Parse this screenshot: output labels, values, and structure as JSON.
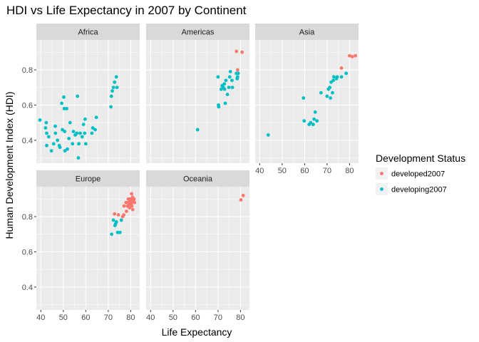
{
  "chart_data": {
    "type": "scatter",
    "title": "HDI vs Life Expectancy in 2007 by Continent",
    "xlabel": "Life Expectancy",
    "ylabel": "Human Development Index (HDI)",
    "xlim": [
      38,
      84
    ],
    "ylim": [
      0.27,
      0.97
    ],
    "xticks": [
      40,
      50,
      60,
      70,
      80
    ],
    "yticks": [
      0.4,
      0.6,
      0.8
    ],
    "legend": {
      "title": "Development Status",
      "position": "right",
      "entries": [
        "developed2007",
        "developing2007"
      ]
    },
    "colors": {
      "developed2007": "#f8766d",
      "developing2007": "#00bfc4",
      "panel": "#ebebeb",
      "strip": "#d9d9d9",
      "grid": "#ffffff"
    },
    "panels": [
      {
        "name": "Africa",
        "series": [
          {
            "name": "developing2007",
            "points": [
              [
                39.6,
                0.515
              ],
              [
                42.6,
                0.37
              ],
              [
                42.4,
                0.5
              ],
              [
                42.1,
                0.47
              ],
              [
                42.6,
                0.44
              ],
              [
                43.5,
                0.42
              ],
              [
                44.7,
                0.34
              ],
              [
                45.7,
                0.38
              ],
              [
                46.5,
                0.44
              ],
              [
                46.4,
                0.48
              ],
              [
                47.4,
                0.4
              ],
              [
                48.2,
                0.37
              ],
              [
                48.5,
                0.36
              ],
              [
                49.3,
                0.61
              ],
              [
                49.6,
                0.46
              ],
              [
                50.2,
                0.645
              ],
              [
                50.4,
                0.58
              ],
              [
                50.6,
                0.45
              ],
              [
                50.7,
                0.34
              ],
              [
                51.5,
                0.58
              ],
              [
                51.8,
                0.35
              ],
              [
                52.5,
                0.41
              ],
              [
                53.0,
                0.5
              ],
              [
                54.1,
                0.38
              ],
              [
                54.5,
                0.45
              ],
              [
                55.3,
                0.43
              ],
              [
                56.0,
                0.44
              ],
              [
                56.3,
                0.65
              ],
              [
                56.7,
                0.3
              ],
              [
                56.9,
                0.38
              ],
              [
                57.5,
                0.44
              ],
              [
                58.4,
                0.42
              ],
              [
                59.0,
                0.49
              ],
              [
                59.5,
                0.44
              ],
              [
                59.7,
                0.52
              ],
              [
                60.0,
                0.38
              ],
              [
                62.7,
                0.44
              ],
              [
                63.1,
                0.47
              ],
              [
                64.2,
                0.46
              ],
              [
                64.7,
                0.53
              ],
              [
                71.2,
                0.59
              ],
              [
                71.4,
                0.65
              ],
              [
                71.8,
                0.68
              ],
              [
                72.3,
                0.7
              ],
              [
                72.8,
                0.73
              ],
              [
                73.6,
                0.76
              ],
              [
                73.9,
                0.7
              ]
            ]
          }
        ]
      },
      {
        "name": "Americas",
        "series": [
          {
            "name": "developing2007",
            "points": [
              [
                60.9,
                0.46
              ],
              [
                70.0,
                0.76
              ],
              [
                70.2,
                0.6
              ],
              [
                70.3,
                0.59
              ],
              [
                71.4,
                0.69
              ],
              [
                71.8,
                0.71
              ],
              [
                72.4,
                0.7
              ],
              [
                72.8,
                0.72
              ],
              [
                72.9,
                0.69
              ],
              [
                73.2,
                0.61
              ],
              [
                73.5,
                0.74
              ],
              [
                74.2,
                0.66
              ],
              [
                74.8,
                0.7
              ],
              [
                75.2,
                0.76
              ],
              [
                75.5,
                0.79
              ],
              [
                76.2,
                0.74
              ],
              [
                76.4,
                0.7
              ],
              [
                78.2,
                0.78
              ],
              [
                78.5,
                0.75
              ],
              [
                78.7,
                0.76
              ],
              [
                79.0,
                0.78
              ]
            ]
          },
          {
            "name": "developed2007",
            "points": [
              [
                78.2,
                0.905
              ],
              [
                78.7,
                0.8
              ],
              [
                80.7,
                0.9
              ]
            ]
          }
        ]
      },
      {
        "name": "Asia",
        "series": [
          {
            "name": "developing2007",
            "points": [
              [
                43.8,
                0.43
              ],
              [
                59.5,
                0.64
              ],
              [
                59.8,
                0.51
              ],
              [
                62.0,
                0.49
              ],
              [
                62.7,
                0.5
              ],
              [
                63.8,
                0.49
              ],
              [
                64.2,
                0.52
              ],
              [
                64.7,
                0.56
              ],
              [
                65.5,
                0.51
              ],
              [
                67.3,
                0.67
              ],
              [
                70.0,
                0.65
              ],
              [
                70.6,
                0.69
              ],
              [
                71.2,
                0.7
              ],
              [
                71.5,
                0.64
              ],
              [
                71.8,
                0.73
              ],
              [
                72.4,
                0.67
              ],
              [
                72.8,
                0.74
              ],
              [
                73.0,
                0.76
              ],
              [
                74.2,
                0.75
              ],
              [
                74.5,
                0.76
              ],
              [
                76.4,
                0.76
              ],
              [
                78.5,
                0.78
              ]
            ]
          },
          {
            "name": "developed2007",
            "points": [
              [
                76.4,
                0.81
              ],
              [
                80.0,
                0.88
              ],
              [
                81.2,
                0.875
              ],
              [
                82.6,
                0.88
              ]
            ]
          }
        ]
      },
      {
        "name": "Europe",
        "series": [
          {
            "name": "developing2007",
            "points": [
              [
                71.5,
                0.7
              ],
              [
                72.3,
                0.78
              ],
              [
                73.0,
                0.75
              ],
              [
                73.3,
                0.76
              ],
              [
                73.6,
                0.77
              ],
              [
                74.2,
                0.71
              ],
              [
                75.2,
                0.71
              ],
              [
                75.8,
                0.78
              ]
            ]
          },
          {
            "name": "developed2007",
            "points": [
              [
                72.8,
                0.815
              ],
              [
                74.5,
                0.81
              ],
              [
                76.4,
                0.8
              ],
              [
                76.9,
                0.81
              ],
              [
                77.0,
                0.86
              ],
              [
                77.9,
                0.88
              ],
              [
                78.1,
                0.83
              ],
              [
                78.5,
                0.86
              ],
              [
                78.9,
                0.9
              ],
              [
                79.0,
                0.88
              ],
              [
                79.3,
                0.87
              ],
              [
                79.4,
                0.9
              ],
              [
                79.5,
                0.85
              ],
              [
                79.8,
                0.89
              ],
              [
                80.0,
                0.87
              ],
              [
                80.2,
                0.9
              ],
              [
                80.4,
                0.93
              ],
              [
                80.5,
                0.86
              ],
              [
                80.6,
                0.88
              ],
              [
                80.8,
                0.91
              ],
              [
                80.9,
                0.84
              ],
              [
                81.2,
                0.89
              ],
              [
                81.5,
                0.9
              ],
              [
                81.7,
                0.88
              ]
            ]
          }
        ]
      },
      {
        "name": "Oceania",
        "series": [
          {
            "name": "developed2007",
            "points": [
              [
                80.2,
                0.895
              ],
              [
                81.2,
                0.92
              ]
            ]
          }
        ]
      }
    ]
  }
}
